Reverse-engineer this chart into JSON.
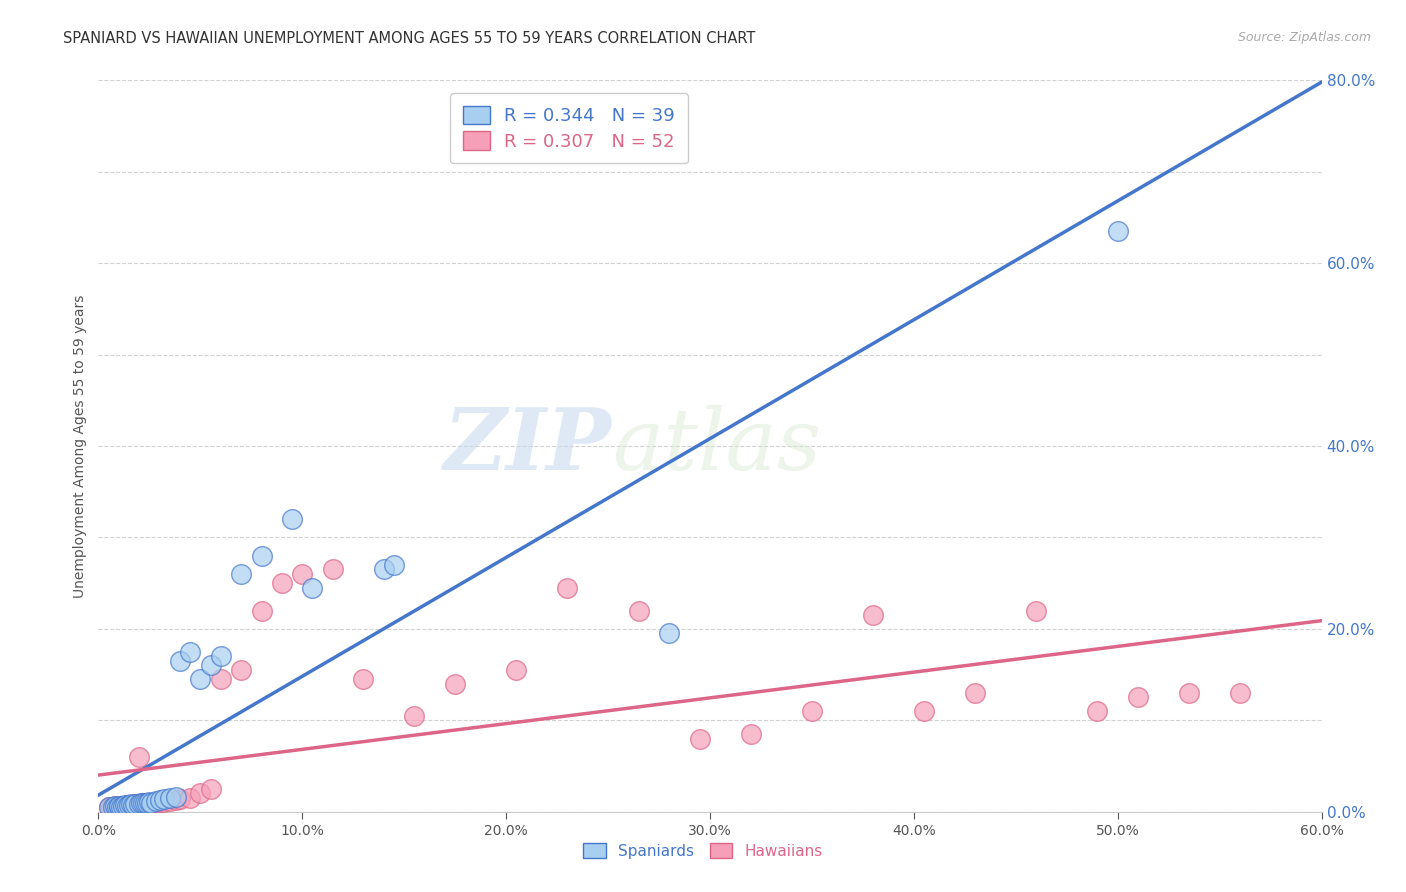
{
  "title": "SPANIARD VS HAWAIIAN UNEMPLOYMENT AMONG AGES 55 TO 59 YEARS CORRELATION CHART",
  "source": "Source: ZipAtlas.com",
  "ylabel": "Unemployment Among Ages 55 to 59 years",
  "xlim": [
    0.0,
    0.6
  ],
  "ylim": [
    0.0,
    0.8
  ],
  "xticks": [
    0.0,
    0.1,
    0.2,
    0.3,
    0.4,
    0.5,
    0.6
  ],
  "yticks_right": [
    0.0,
    0.2,
    0.4,
    0.6,
    0.8
  ],
  "spaniards_R": 0.344,
  "spaniards_N": 39,
  "hawaiians_R": 0.307,
  "hawaiians_N": 52,
  "spaniards_color": "#A8CFF0",
  "hawaiians_color": "#F5A0B8",
  "spaniards_line_color": "#4477CC",
  "hawaiians_line_color": "#DD6688",
  "watermark_zip": "ZIP",
  "watermark_atlas": "atlas",
  "spaniards_x": [
    0.005,
    0.007,
    0.008,
    0.009,
    0.01,
    0.01,
    0.011,
    0.012,
    0.013,
    0.014,
    0.015,
    0.016,
    0.017,
    0.018,
    0.02,
    0.021,
    0.022,
    0.023,
    0.024,
    0.025,
    0.026,
    0.028,
    0.03,
    0.032,
    0.035,
    0.038,
    0.04,
    0.045,
    0.05,
    0.055,
    0.06,
    0.07,
    0.08,
    0.095,
    0.105,
    0.14,
    0.145,
    0.28,
    0.5
  ],
  "spaniards_y": [
    0.005,
    0.005,
    0.006,
    0.005,
    0.005,
    0.006,
    0.005,
    0.006,
    0.007,
    0.006,
    0.007,
    0.008,
    0.007,
    0.008,
    0.008,
    0.009,
    0.01,
    0.009,
    0.01,
    0.011,
    0.01,
    0.012,
    0.013,
    0.014,
    0.015,
    0.016,
    0.165,
    0.175,
    0.145,
    0.16,
    0.17,
    0.26,
    0.28,
    0.32,
    0.245,
    0.265,
    0.27,
    0.195,
    0.635
  ],
  "hawaiians_x": [
    0.005,
    0.006,
    0.007,
    0.008,
    0.009,
    0.01,
    0.011,
    0.012,
    0.013,
    0.014,
    0.015,
    0.016,
    0.018,
    0.019,
    0.02,
    0.022,
    0.024,
    0.026,
    0.028,
    0.03,
    0.032,
    0.035,
    0.038,
    0.04,
    0.045,
    0.05,
    0.055,
    0.06,
    0.07,
    0.08,
    0.09,
    0.1,
    0.115,
    0.13,
    0.155,
    0.175,
    0.205,
    0.23,
    0.265,
    0.295,
    0.32,
    0.35,
    0.38,
    0.405,
    0.43,
    0.46,
    0.49,
    0.51,
    0.535,
    0.56,
    0.01,
    0.02
  ],
  "hawaiians_y": [
    0.005,
    0.005,
    0.005,
    0.006,
    0.005,
    0.005,
    0.006,
    0.006,
    0.006,
    0.007,
    0.007,
    0.007,
    0.008,
    0.008,
    0.008,
    0.009,
    0.009,
    0.01,
    0.01,
    0.011,
    0.011,
    0.012,
    0.013,
    0.014,
    0.015,
    0.02,
    0.025,
    0.145,
    0.155,
    0.22,
    0.25,
    0.26,
    0.265,
    0.145,
    0.105,
    0.14,
    0.155,
    0.245,
    0.22,
    0.08,
    0.085,
    0.11,
    0.215,
    0.11,
    0.13,
    0.22,
    0.11,
    0.125,
    0.13,
    0.13,
    0.005,
    0.06
  ]
}
